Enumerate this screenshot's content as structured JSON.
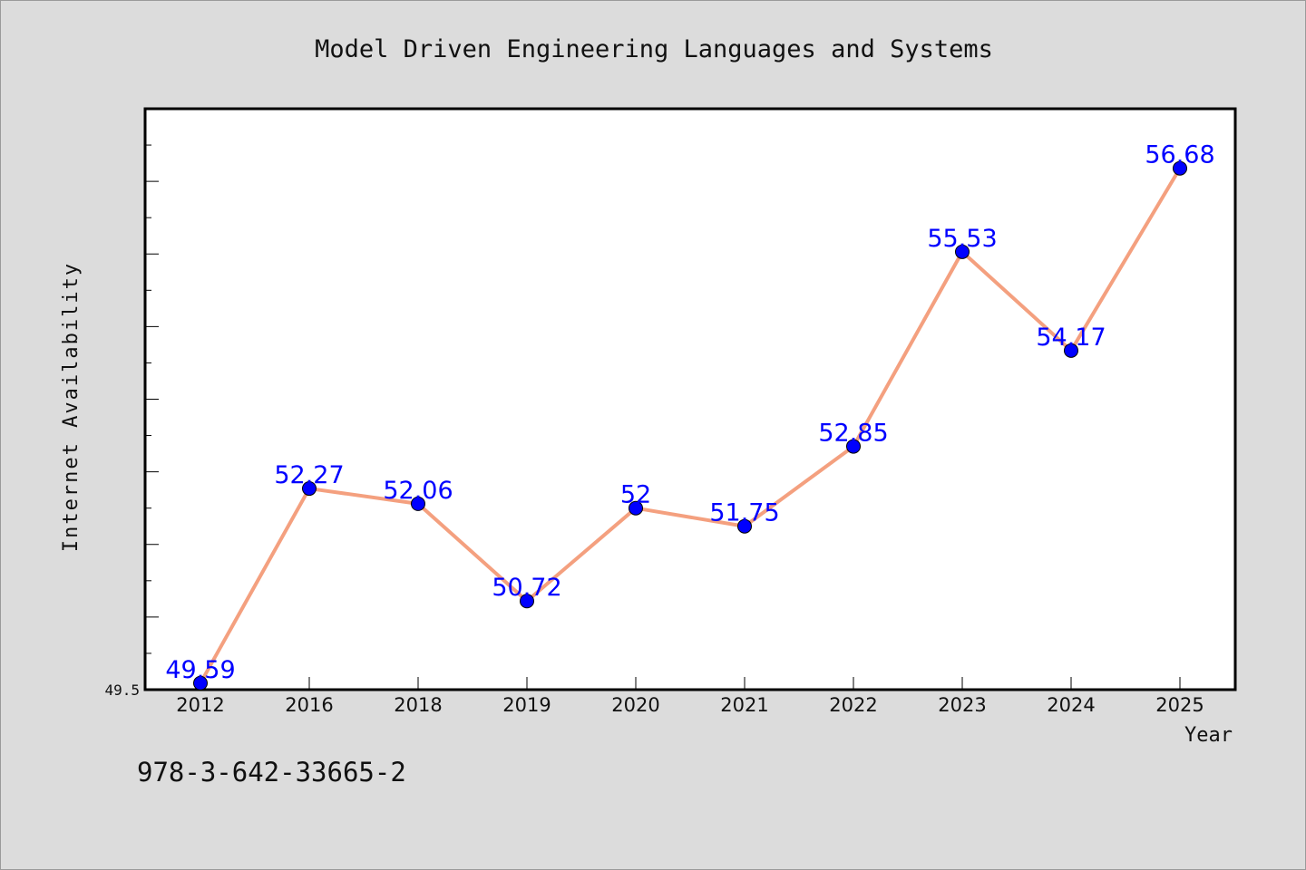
{
  "isbn": "978-3-642-33665-2",
  "colors": {
    "background": "#dcdcdc",
    "plot_background": "#ffffff",
    "line": "#f4a07f",
    "marker": "#0000ff",
    "data_label": "#0000ff",
    "text": "#111111"
  },
  "chart_data": {
    "type": "line",
    "title": "Model Driven Engineering Languages and Systems",
    "xlabel": "Year",
    "ylabel": "Internet Availability",
    "categories": [
      "2012",
      "2016",
      "2018",
      "2019",
      "2020",
      "2021",
      "2022",
      "2023",
      "2024",
      "2025"
    ],
    "series": [
      {
        "values": [
          49.59,
          52.27,
          52.06,
          50.72,
          52,
          51.75,
          52.85,
          55.53,
          54.17,
          56.68
        ],
        "labels": [
          "49.59",
          "52.27",
          "52.06",
          "50.72",
          "52",
          "51.75",
          "52.85",
          "55.53",
          "54.17",
          "56.68"
        ]
      }
    ],
    "ylim": [
      49.5,
      57.5
    ],
    "y_tick_labels": [
      "49.5"
    ],
    "y_minor_tick_step": 0.5,
    "grid": false,
    "legend": "none"
  }
}
